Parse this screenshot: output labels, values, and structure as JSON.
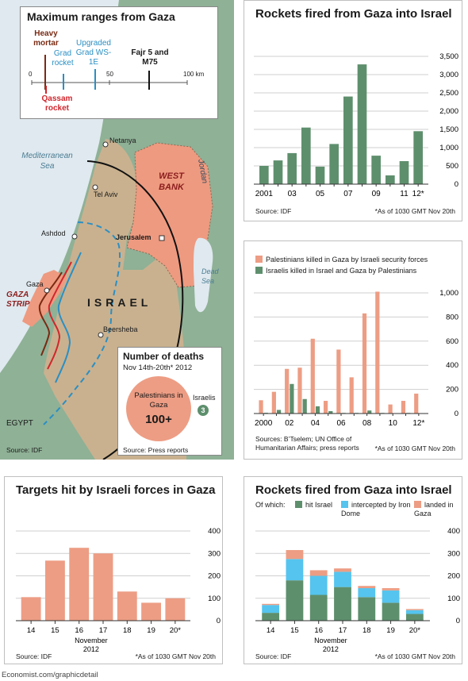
{
  "map": {
    "inset_title": "Maximum ranges from Gaza",
    "weapons": [
      "Heavy mortar",
      "Grad rocket",
      "Upgraded Grad WS-1E",
      "Fajr 5 and M75",
      "Qassam rocket"
    ],
    "scale_ticks": [
      "0",
      "50",
      "100 km"
    ],
    "labels": {
      "sea": "Mediterranean Sea",
      "jordan": "Jordan",
      "west_bank": "WEST BANK",
      "netanya": "Netanya",
      "tel_aviv": "Tel Aviv",
      "ashdod": "Ashdod",
      "jerusalem": "Jerusalem",
      "gaza": "Gaza",
      "gaza_strip": "GAZA STRIP",
      "israel": "ISRAEL",
      "beersheba": "Beersheba",
      "dead_sea": "Dead Sea",
      "egypt": "EGYPT"
    },
    "source": "Source: IDF",
    "colors": {
      "mortar": "#7a2a12",
      "qassam": "#d0262c",
      "grad": "#2a8fc4",
      "fajr": "#111111",
      "israel": "#c9b18f",
      "westbank": "#ee9a80",
      "gazastrip": "#ee9a80",
      "sea": "#dfe9ef",
      "land": "#8fb196"
    }
  },
  "deaths": {
    "title": "Number of deaths",
    "subtitle": "Nov 14th-20th* 2012",
    "palestinians_label": "Palestinians in Gaza",
    "palestinians_value": "100+",
    "israelis_label": "Israelis",
    "israelis_value": "3",
    "source": "Source: Press reports"
  },
  "charts": [
    {
      "id": "rockets_annual",
      "title": "Rockets fired from Gaza into Israel",
      "source": "Source: IDF",
      "note": "*As of 1030 GMT Nov 20th",
      "chart_data": {
        "type": "bar",
        "x": [
          2001,
          2002,
          2003,
          2004,
          2005,
          2006,
          2007,
          2008,
          2009,
          2010,
          2011,
          2012
        ],
        "x_tick_labels": [
          "2001",
          "03",
          "05",
          "07",
          "09",
          "11",
          "12*"
        ],
        "series": [
          {
            "values": [
              500,
              650,
              850,
              1550,
              480,
              1100,
              2400,
              3280,
              780,
              240,
              630,
              1450
            ],
            "color": "#5e8f6d"
          }
        ],
        "ylim": [
          0,
          3500
        ],
        "yticks": [
          0,
          500,
          1000,
          1500,
          2000,
          2500,
          3000,
          3500
        ],
        "ytick_labels": [
          "0",
          "500",
          "1,000",
          "1,500",
          "2,000",
          "2,500",
          "3,000",
          "3,500"
        ],
        "grid": true
      }
    },
    {
      "id": "deaths_annual",
      "title": "",
      "source": "Sources: B’Tselem; UN Office of Humanitarian Affairs; press reports",
      "note": "*As of 1030 GMT Nov 20th",
      "chart_data": {
        "type": "bar",
        "x": [
          2000,
          2001,
          2002,
          2003,
          2004,
          2005,
          2006,
          2007,
          2008,
          2009,
          2010,
          2011,
          2012
        ],
        "x_tick_labels": [
          "2000",
          "02",
          "04",
          "06",
          "08",
          "10",
          "12*"
        ],
        "series": [
          {
            "name": "Palestinians killed in Gaza by Israeli security forces",
            "values": [
              110,
              180,
              370,
              380,
              620,
              105,
              530,
              300,
              830,
              1010,
              75,
              105,
              165
            ],
            "color": "#ed9d84"
          },
          {
            "name": "Israelis killed in Israel and Gaza by Palestinians",
            "values": [
              6,
              30,
              245,
              120,
              60,
              20,
              5,
              5,
              25,
              5,
              3,
              5,
              3
            ],
            "color": "#5e8f6d"
          }
        ],
        "ylim": [
          0,
          1000
        ],
        "yticks": [
          0,
          200,
          400,
          600,
          800,
          1000
        ],
        "ytick_labels": [
          "0",
          "200",
          "400",
          "600",
          "800",
          "1,000"
        ],
        "grid": true
      }
    },
    {
      "id": "targets_nov",
      "title": "Targets hit by Israeli forces in Gaza",
      "source": "Source: IDF",
      "note": "*As of 1030 GMT Nov 20th",
      "chart_data": {
        "type": "bar",
        "categories": [
          "14",
          "15",
          "16",
          "17",
          "18",
          "19",
          "20*"
        ],
        "xlabel": "November 2012",
        "series": [
          {
            "values": [
              105,
              268,
              325,
              300,
              130,
              80,
              100
            ],
            "color": "#ed9d84"
          }
        ],
        "ylim": [
          0,
          400
        ],
        "yticks": [
          0,
          100,
          200,
          300,
          400
        ],
        "ytick_labels": [
          "0",
          "100",
          "200",
          "300",
          "400"
        ],
        "grid": true
      }
    },
    {
      "id": "rockets_nov",
      "title": "Rockets fired from Gaza into Israel",
      "legend_prefix": "Of which:",
      "source": "Source: IDF",
      "note": "*As of 1030 GMT Nov 20th",
      "chart_data": {
        "type": "bar",
        "stacked": true,
        "categories": [
          "14",
          "15",
          "16",
          "17",
          "18",
          "19",
          "20*"
        ],
        "xlabel": "November 2012",
        "series": [
          {
            "name": "hit Israel",
            "values": [
              35,
              180,
              115,
              150,
              105,
              80,
              30
            ],
            "color": "#5e8f6d"
          },
          {
            "name": "intercepted by Iron Dome",
            "values": [
              35,
              95,
              85,
              68,
              40,
              55,
              17
            ],
            "color": "#55c4ee"
          },
          {
            "name": "landed in Gaza",
            "values": [
              5,
              40,
              25,
              15,
              10,
              10,
              5
            ],
            "color": "#ed9d84"
          }
        ],
        "ylim": [
          0,
          400
        ],
        "yticks": [
          0,
          100,
          200,
          300,
          400
        ],
        "ytick_labels": [
          "0",
          "100",
          "200",
          "300",
          "400"
        ],
        "grid": true
      }
    }
  ],
  "footer": "Economist.com/graphicdetail"
}
